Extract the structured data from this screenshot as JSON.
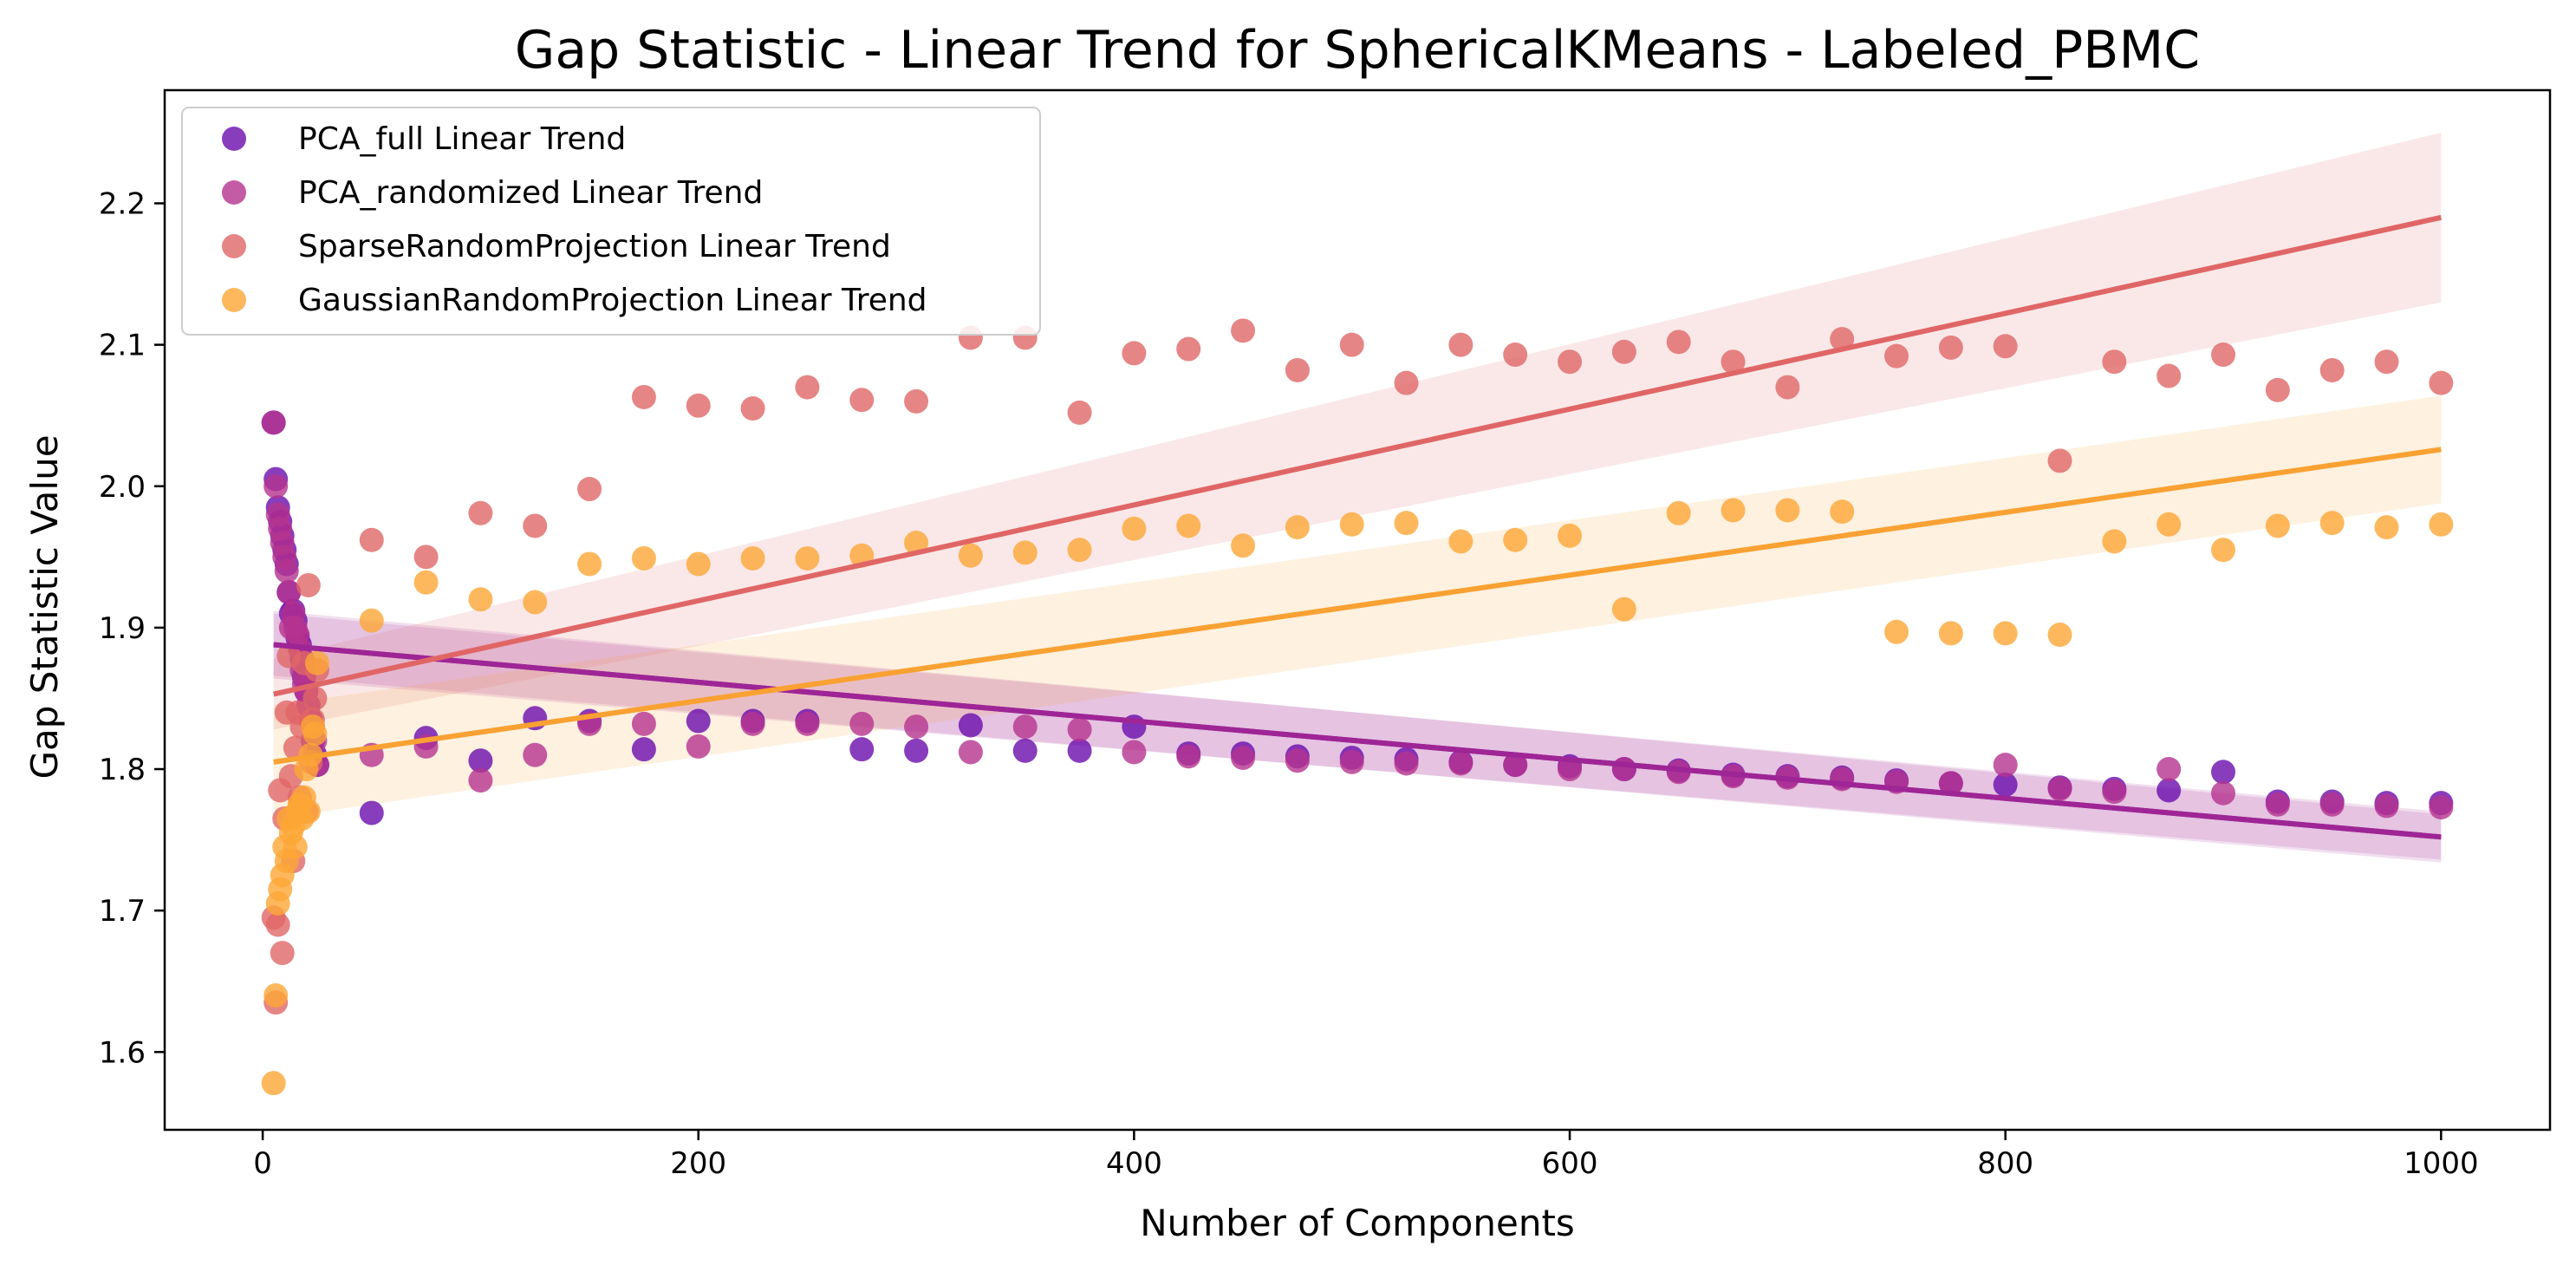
{
  "chart_data": {
    "type": "scatter",
    "title": "Gap Statistic - Linear Trend for SphericalKMeans - Labeled_PBMC",
    "xlabel": "Number of Components",
    "ylabel": "Gap Statistic Value",
    "xlim": [
      -45,
      1050
    ],
    "ylim": [
      1.545,
      2.28
    ],
    "xticks": [
      0,
      200,
      400,
      600,
      800,
      1000
    ],
    "yticks": [
      1.6,
      1.7,
      1.8,
      1.9,
      2.0,
      2.1,
      2.2
    ],
    "legend_position": "upper-left",
    "grid": false,
    "series": [
      {
        "name": "PCA_full Linear Trend",
        "color": "#6a0dad",
        "line_color": "#9e2596",
        "x": [
          5,
          6,
          7,
          8,
          9,
          10,
          11,
          12,
          13,
          14,
          15,
          16,
          17,
          18,
          19,
          20,
          21,
          22,
          23,
          24,
          25,
          50,
          75,
          100,
          125,
          150,
          175,
          200,
          225,
          250,
          275,
          300,
          325,
          350,
          375,
          400,
          425,
          450,
          475,
          500,
          525,
          550,
          575,
          600,
          625,
          650,
          675,
          700,
          725,
          750,
          775,
          800,
          825,
          850,
          875,
          900,
          925,
          950,
          975,
          1000
        ],
        "y": [
          2.045,
          2.005,
          1.985,
          1.975,
          1.965,
          1.955,
          1.945,
          1.925,
          1.91,
          1.912,
          1.905,
          1.893,
          1.888,
          1.878,
          1.865,
          1.855,
          1.845,
          1.835,
          1.82,
          1.81,
          1.803,
          1.769,
          1.822,
          1.806,
          1.836,
          1.834,
          1.814,
          1.834,
          1.834,
          1.834,
          1.814,
          1.813,
          1.831,
          1.813,
          1.813,
          1.83,
          1.811,
          1.811,
          1.809,
          1.808,
          1.807,
          1.805,
          1.803,
          1.802,
          1.8,
          1.799,
          1.796,
          1.795,
          1.794,
          1.792,
          1.79,
          1.789,
          1.787,
          1.786,
          1.785,
          1.798,
          1.777,
          1.777,
          1.776,
          1.776
        ],
        "trend": {
          "x0": 5,
          "y0": 1.888,
          "x1": 1000,
          "y1": 1.752,
          "ci_start": 0.022,
          "ci_end": 0.018
        }
      },
      {
        "name": "PCA_randomized Linear Trend",
        "color": "#b5338f",
        "line_color": "#9e2596",
        "x": [
          5,
          6,
          7,
          8,
          9,
          10,
          11,
          12,
          13,
          14,
          15,
          16,
          17,
          18,
          19,
          20,
          21,
          22,
          23,
          24,
          25,
          50,
          75,
          100,
          125,
          150,
          175,
          200,
          225,
          250,
          275,
          300,
          325,
          350,
          375,
          400,
          425,
          450,
          475,
          500,
          525,
          550,
          575,
          600,
          625,
          650,
          675,
          700,
          725,
          750,
          775,
          800,
          825,
          850,
          875,
          900,
          925,
          950,
          975,
          1000
        ],
        "y": [
          2.045,
          2.0,
          1.98,
          1.97,
          1.96,
          1.95,
          1.94,
          1.925,
          1.9,
          1.91,
          1.9,
          1.895,
          1.885,
          1.87,
          1.86,
          1.855,
          1.845,
          1.835,
          1.83,
          1.82,
          1.803,
          1.81,
          1.816,
          1.792,
          1.81,
          1.832,
          1.832,
          1.816,
          1.832,
          1.832,
          1.832,
          1.83,
          1.812,
          1.83,
          1.828,
          1.812,
          1.809,
          1.808,
          1.806,
          1.805,
          1.804,
          1.804,
          1.803,
          1.8,
          1.8,
          1.798,
          1.795,
          1.794,
          1.793,
          1.791,
          1.79,
          1.803,
          1.786,
          1.784,
          1.8,
          1.783,
          1.775,
          1.775,
          1.774,
          1.773
        ],
        "trend": {
          "x0": 5,
          "y0": 1.888,
          "x1": 1000,
          "y1": 1.752,
          "ci_start": 0.024,
          "ci_end": 0.016
        }
      },
      {
        "name": "SparseRandomProjection Linear Trend",
        "color": "#e06666",
        "line_color": "#e06666",
        "x": [
          5,
          6,
          7,
          8,
          9,
          10,
          11,
          12,
          13,
          14,
          15,
          16,
          17,
          18,
          19,
          20,
          21,
          22,
          23,
          24,
          25,
          50,
          75,
          100,
          125,
          150,
          175,
          200,
          225,
          250,
          275,
          300,
          325,
          350,
          375,
          400,
          425,
          450,
          475,
          500,
          525,
          550,
          575,
          600,
          625,
          650,
          675,
          700,
          725,
          750,
          775,
          800,
          825,
          850,
          875,
          900,
          925,
          950,
          975,
          1000
        ],
        "y": [
          1.695,
          1.635,
          1.69,
          1.785,
          1.67,
          1.765,
          1.84,
          1.88,
          1.795,
          1.735,
          1.815,
          1.84,
          1.78,
          1.83,
          1.875,
          1.77,
          1.93,
          1.805,
          1.835,
          1.85,
          1.87,
          1.962,
          1.95,
          1.981,
          1.972,
          1.998,
          2.063,
          2.057,
          2.055,
          2.07,
          2.061,
          2.06,
          2.105,
          2.105,
          2.052,
          2.094,
          2.097,
          2.11,
          2.082,
          2.1,
          2.073,
          2.1,
          2.093,
          2.088,
          2.095,
          2.102,
          2.088,
          2.07,
          2.104,
          2.092,
          2.098,
          2.099,
          2.018,
          2.088,
          2.078,
          2.093,
          2.068,
          2.082,
          2.088,
          2.073
        ],
        "trend": {
          "x0": 5,
          "y0": 1.853,
          "x1": 1000,
          "y1": 2.19,
          "ci_start": 0.025,
          "ci_end": 0.06
        }
      },
      {
        "name": "GaussianRandomProjection Linear Trend",
        "color": "#fca636",
        "line_color": "#f9a132",
        "x": [
          5,
          6,
          7,
          8,
          9,
          10,
          11,
          12,
          13,
          14,
          15,
          16,
          17,
          18,
          19,
          20,
          21,
          22,
          23,
          24,
          25,
          50,
          75,
          100,
          125,
          150,
          175,
          200,
          225,
          250,
          275,
          300,
          325,
          350,
          375,
          400,
          425,
          450,
          475,
          500,
          525,
          550,
          575,
          600,
          625,
          650,
          675,
          700,
          725,
          750,
          775,
          800,
          825,
          850,
          875,
          900,
          925,
          950,
          975,
          1000
        ],
        "y": [
          1.578,
          1.64,
          1.705,
          1.715,
          1.725,
          1.745,
          1.735,
          1.765,
          1.755,
          1.76,
          1.745,
          1.77,
          1.775,
          1.765,
          1.78,
          1.8,
          1.77,
          1.81,
          1.83,
          1.825,
          1.875,
          1.905,
          1.932,
          1.92,
          1.918,
          1.945,
          1.949,
          1.945,
          1.949,
          1.949,
          1.951,
          1.96,
          1.951,
          1.953,
          1.955,
          1.97,
          1.972,
          1.958,
          1.971,
          1.973,
          1.974,
          1.961,
          1.962,
          1.965,
          1.913,
          1.981,
          1.983,
          1.983,
          1.982,
          1.897,
          1.896,
          1.896,
          1.895,
          1.961,
          1.973,
          1.955,
          1.972,
          1.974,
          1.971,
          1.973
        ],
        "trend": {
          "x0": 5,
          "y0": 1.805,
          "x1": 1000,
          "y1": 2.026,
          "ci_start": 0.04,
          "ci_end": 0.038
        }
      }
    ]
  }
}
